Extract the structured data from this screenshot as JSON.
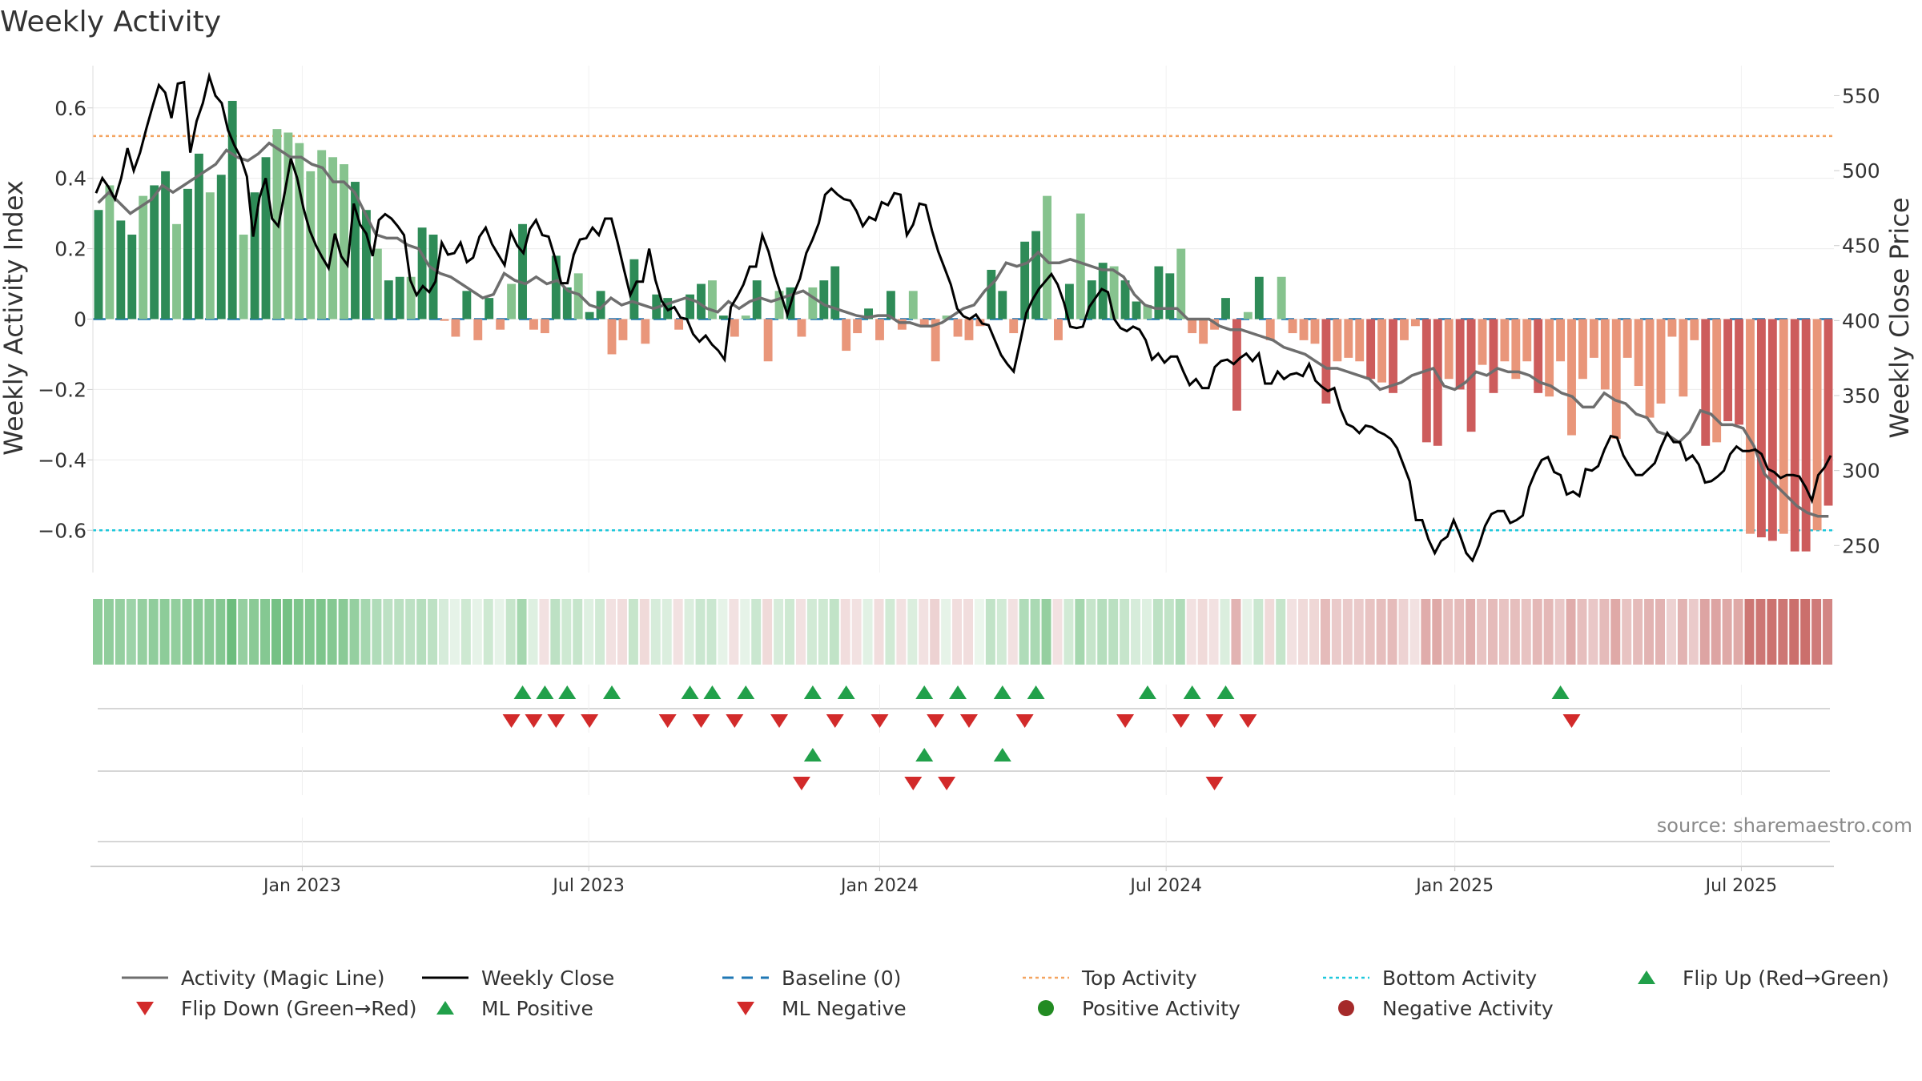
{
  "colors": {
    "dark_green": "#2e8b57",
    "light_green": "#86c38e",
    "dark_red": "#cd5c5c",
    "light_red": "#e9967a",
    "close_line": "#000000",
    "magic_line": "#6e6e6e",
    "baseline": "#1f77b4",
    "top_line": "#f4a460",
    "bottom_line": "#1ec8dc",
    "flip_up": "#21a04a",
    "flip_down": "#d22a2a",
    "pos_activity": "#228b22",
    "neg_activity": "#a52a2a"
  },
  "chart_data": {
    "type": "bar+line",
    "title": "Weekly Activity",
    "ylabel_left": "Weekly Activity Index",
    "ylabel_right": "Weekly Close Price",
    "ylim_left": [
      -0.72,
      0.72
    ],
    "ylim_right": [
      232,
      570
    ],
    "xlim_weeks": [
      -19,
      139
    ],
    "left_ticks": [
      {
        "v": 0.6,
        "label": "0.6"
      },
      {
        "v": 0.4,
        "label": "0.4"
      },
      {
        "v": 0.2,
        "label": "0.2"
      },
      {
        "v": 0,
        "label": "0"
      },
      {
        "v": -0.2,
        "label": "−0.2"
      },
      {
        "v": -0.4,
        "label": "−0.4"
      },
      {
        "v": -0.6,
        "label": "−0.6"
      }
    ],
    "right_ticks": [
      {
        "v": 550,
        "label": "550"
      },
      {
        "v": 500,
        "label": "500"
      },
      {
        "v": 450,
        "label": "450"
      },
      {
        "v": 400,
        "label": "400"
      },
      {
        "v": 350,
        "label": "350"
      },
      {
        "v": 300,
        "label": "300"
      },
      {
        "v": 250,
        "label": "250"
      }
    ],
    "x_ticks": [
      {
        "week": 0,
        "label": "Jan 2023"
      },
      {
        "week": 26,
        "label": "Jul 2023"
      },
      {
        "week": 52.4,
        "label": "Jan 2024"
      },
      {
        "week": 78.4,
        "label": "Jul 2024"
      },
      {
        "week": 104.6,
        "label": "Jan 2025"
      },
      {
        "week": 130.6,
        "label": "Jul 2025"
      }
    ],
    "top_activity": 0.52,
    "bottom_activity": -0.6,
    "activity_index": [
      0.31,
      0.38,
      0.28,
      0.24,
      0.35,
      0.38,
      0.42,
      0.27,
      0.37,
      0.47,
      0.36,
      0.41,
      0.62,
      0.24,
      0.36,
      0.46,
      0.54,
      0.53,
      0.5,
      0.42,
      0.48,
      0.46,
      0.44,
      0.39,
      0.31,
      0.2,
      0.11,
      0.12,
      0.12,
      0.26,
      0.24,
      -0.005,
      -0.05,
      0.08,
      -0.06,
      0.06,
      -0.03,
      0.1,
      0.27,
      -0.03,
      -0.04,
      0.18,
      0.09,
      0.13,
      0.02,
      0.08,
      -0.1,
      -0.06,
      0.17,
      -0.07,
      0.07,
      0.06,
      -0.03,
      0.07,
      0.1,
      0.11,
      0.01,
      -0.05,
      0.01,
      0.11,
      -0.12,
      0.08,
      0.09,
      -0.05,
      0.09,
      0.11,
      0.15,
      -0.09,
      -0.04,
      0.03,
      -0.06,
      0.08,
      -0.03,
      0.08,
      -0.02,
      -0.12,
      0.01,
      -0.05,
      -0.06,
      -0.02,
      0.14,
      0.08,
      -0.04,
      0.22,
      0.25,
      0.35,
      -0.06,
      0.1,
      0.3,
      0.11,
      0.16,
      0.15,
      0.11,
      0.05,
      0.04,
      0.15,
      0.13,
      0.2,
      -0.04,
      -0.07,
      -0.03,
      0.06,
      -0.26,
      0.02,
      0.12,
      -0.06,
      0.12,
      -0.04,
      -0.06,
      -0.07,
      -0.24,
      -0.12,
      -0.11,
      -0.12,
      -0.17,
      -0.18,
      -0.21,
      -0.06,
      -0.02,
      -0.35,
      -0.36,
      -0.17,
      -0.2,
      -0.32,
      -0.13,
      -0.21,
      -0.12,
      -0.17,
      -0.12,
      -0.21,
      -0.22,
      -0.12,
      -0.33,
      -0.17,
      -0.11,
      -0.2,
      -0.34,
      -0.11,
      -0.19,
      -0.28,
      -0.24,
      -0.05,
      -0.22,
      -0.06,
      -0.36,
      -0.35,
      -0.29,
      -0.3,
      -0.61,
      -0.62,
      -0.63,
      -0.61,
      -0.66,
      -0.66,
      -0.6,
      -0.53
    ],
    "magic_line": [
      0.33,
      0.36,
      0.33,
      0.3,
      0.32,
      0.34,
      0.38,
      0.36,
      0.38,
      0.4,
      0.42,
      0.44,
      0.48,
      0.46,
      0.45,
      0.47,
      0.5,
      0.48,
      0.46,
      0.46,
      0.44,
      0.43,
      0.39,
      0.39,
      0.36,
      0.3,
      0.24,
      0.23,
      0.23,
      0.21,
      0.2,
      0.15,
      0.13,
      0.12,
      0.1,
      0.08,
      0.06,
      0.07,
      0.13,
      0.11,
      0.1,
      0.12,
      0.1,
      0.11,
      0.08,
      0.07,
      0.04,
      0.03,
      0.06,
      0.04,
      0.05,
      0.04,
      0.03,
      0.04,
      0.05,
      0.06,
      0.05,
      0.03,
      0.02,
      0.05,
      0.03,
      0.05,
      0.06,
      0.05,
      0.06,
      0.07,
      0.08,
      0.06,
      0.04,
      0.03,
      0.02,
      0.01,
      0.005,
      0.01,
      0.01,
      -0.01,
      -0.01,
      -0.02,
      -0.02,
      -0.01,
      0.01,
      0.03,
      0.04,
      0.08,
      0.11,
      0.16,
      0.15,
      0.16,
      0.19,
      0.16,
      0.16,
      0.17,
      0.16,
      0.15,
      0.14,
      0.14,
      0.12,
      0.07,
      0.04,
      0.03,
      0.03,
      0.03,
      0.0,
      0.0,
      0.0,
      -0.02,
      -0.03,
      -0.03,
      -0.04,
      -0.05,
      -0.06,
      -0.08,
      -0.09,
      -0.1,
      -0.12,
      -0.14,
      -0.14,
      -0.15,
      -0.16,
      -0.17,
      -0.2,
      -0.19,
      -0.18,
      -0.16,
      -0.15,
      -0.14,
      -0.19,
      -0.2,
      -0.18,
      -0.15,
      -0.16,
      -0.14,
      -0.15,
      -0.15,
      -0.16,
      -0.18,
      -0.19,
      -0.21,
      -0.22,
      -0.25,
      -0.25,
      -0.21,
      -0.23,
      -0.24,
      -0.27,
      -0.28,
      -0.32,
      -0.33,
      -0.35,
      -0.32,
      -0.26,
      -0.27,
      -0.3,
      -0.3,
      -0.31,
      -0.36,
      -0.44,
      -0.47,
      -0.5,
      -0.53,
      -0.55,
      -0.56,
      -0.56
    ],
    "weekly_close": [
      485,
      495,
      489,
      481,
      495,
      515,
      500,
      512,
      528,
      543,
      557,
      552,
      535,
      558,
      559,
      512,
      533,
      545,
      563,
      550,
      545,
      527,
      517,
      509,
      496,
      456,
      482,
      495,
      468,
      463,
      485,
      508,
      495,
      475,
      460,
      450,
      442,
      435,
      458,
      443,
      437,
      478,
      464,
      458,
      443,
      467,
      471,
      468,
      463,
      457,
      427,
      417,
      423,
      419,
      426,
      452,
      444,
      445,
      452,
      439,
      442,
      456,
      462,
      451,
      444,
      437,
      459,
      450,
      445,
      461,
      467,
      457,
      456,
      442,
      425,
      425,
      444,
      454,
      455,
      462,
      457,
      468,
      468,
      452,
      434,
      417,
      426,
      426,
      448,
      427,
      413,
      407,
      409,
      402,
      401,
      391,
      386,
      390,
      384,
      380,
      374,
      409,
      416,
      424,
      436,
      436,
      457,
      446,
      430,
      417,
      404,
      418,
      428,
      445,
      454,
      465,
      484,
      488,
      484,
      481,
      480,
      473,
      463,
      469,
      467,
      479,
      477,
      485,
      484,
      457,
      464,
      478,
      477,
      460,
      446,
      435,
      424,
      408,
      403,
      401,
      404,
      398,
      397,
      387,
      377,
      371,
      366,
      385,
      405,
      414,
      421,
      426,
      431,
      424,
      412,
      396,
      395,
      396,
      409,
      415,
      421,
      419,
      401,
      395,
      393,
      396,
      394,
      387,
      374,
      378,
      372,
      376,
      376,
      366,
      357,
      361,
      355,
      355,
      369,
      373,
      374,
      371,
      375,
      378,
      373,
      378,
      358,
      358,
      366,
      361,
      364,
      365,
      363,
      371,
      360,
      356,
      353,
      355,
      341,
      331,
      329,
      325,
      330,
      329,
      326,
      324,
      321,
      315,
      304,
      293,
      267,
      267,
      254,
      245,
      253,
      256,
      267,
      257,
      245,
      240,
      250,
      263,
      271,
      273,
      273,
      265,
      267,
      270,
      289,
      299,
      307,
      309,
      299,
      297,
      284,
      286,
      283,
      301,
      300,
      303,
      314,
      323,
      322,
      310,
      303,
      297,
      297,
      301,
      305,
      316,
      325,
      319,
      319,
      307,
      310,
      304,
      292,
      293,
      296,
      300,
      311,
      316,
      313,
      313,
      314,
      311,
      301,
      299,
      295,
      297,
      297,
      296,
      289,
      280,
      297,
      302,
      310
    ],
    "trend_strip": [
      0.6,
      0.58,
      0.55,
      0.5,
      0.55,
      0.58,
      0.6,
      0.57,
      0.6,
      0.62,
      0.62,
      0.65,
      0.8,
      0.55,
      0.62,
      0.65,
      0.75,
      0.75,
      0.7,
      0.67,
      0.7,
      0.65,
      0.62,
      0.55,
      0.45,
      0.38,
      0.3,
      0.32,
      0.3,
      0.35,
      0.3,
      0.15,
      0.05,
      0.2,
      0.05,
      0.2,
      0.05,
      0.25,
      0.45,
      0.1,
      -0.05,
      0.3,
      0.2,
      0.25,
      0.1,
      0.18,
      -0.05,
      -0.08,
      0.25,
      -0.1,
      0.15,
      0.12,
      -0.05,
      0.12,
      0.22,
      0.22,
      0.05,
      -0.05,
      0.05,
      0.22,
      -0.1,
      0.15,
      0.2,
      -0.05,
      0.18,
      0.2,
      0.28,
      -0.08,
      -0.05,
      0.08,
      -0.08,
      0.18,
      -0.05,
      0.12,
      -0.05,
      -0.15,
      0.05,
      -0.08,
      -0.08,
      0.02,
      0.28,
      0.18,
      -0.05,
      0.38,
      0.42,
      0.55,
      -0.05,
      0.18,
      0.45,
      0.25,
      0.35,
      0.32,
      0.25,
      0.15,
      0.1,
      0.3,
      0.28,
      0.38,
      -0.05,
      -0.1,
      -0.05,
      0.12,
      -0.35,
      0.05,
      0.22,
      -0.1,
      0.25,
      -0.05,
      -0.1,
      -0.12,
      -0.3,
      -0.2,
      -0.2,
      -0.2,
      -0.25,
      -0.28,
      -0.3,
      -0.15,
      -0.05,
      -0.4,
      -0.42,
      -0.28,
      -0.3,
      -0.38,
      -0.25,
      -0.3,
      -0.25,
      -0.28,
      -0.25,
      -0.32,
      -0.32,
      -0.22,
      -0.4,
      -0.28,
      -0.22,
      -0.3,
      -0.42,
      -0.25,
      -0.3,
      -0.35,
      -0.35,
      -0.15,
      -0.35,
      -0.2,
      -0.45,
      -0.45,
      -0.42,
      -0.42,
      -0.75,
      -0.75,
      -0.78,
      -0.75,
      -0.8,
      -0.8,
      -0.72,
      -0.65
    ],
    "flip_rows": [
      {
        "name": "Flip Up / Flip Down",
        "up": [
          38,
          40,
          42,
          46,
          53,
          55,
          58,
          64,
          67,
          74,
          77,
          81,
          84,
          94,
          98,
          101,
          131
        ],
        "down": [
          37,
          39,
          41,
          44,
          51,
          54,
          57,
          61,
          66,
          70,
          75,
          78,
          83,
          92,
          97,
          100,
          103,
          132
        ]
      },
      {
        "name": "ML Positive / ML Negative",
        "up": [
          64,
          74,
          81
        ],
        "down": [
          63,
          73,
          76,
          100
        ]
      },
      {
        "name": "Positive / Negative Activity",
        "up": [],
        "down": []
      }
    ]
  },
  "source": "source: sharemaestro.com",
  "legend": [
    {
      "label": "Activity (Magic Line)",
      "kind": "line",
      "color_key": "magic_line"
    },
    {
      "label": "Weekly Close",
      "kind": "line",
      "color_key": "close_line"
    },
    {
      "label": "Baseline (0)",
      "kind": "dash",
      "color_key": "baseline"
    },
    {
      "label": "Top Activity",
      "kind": "dot",
      "color_key": "top_line"
    },
    {
      "label": "Bottom Activity",
      "kind": "dot",
      "color_key": "bottom_line"
    },
    {
      "label": "Flip Up (Red→Green)",
      "kind": "up",
      "color_key": "flip_up"
    },
    {
      "label": "Flip Down (Green→Red)",
      "kind": "down",
      "color_key": "flip_down"
    },
    {
      "label": "ML Positive",
      "kind": "up",
      "color_key": "flip_up"
    },
    {
      "label": "ML Negative",
      "kind": "down",
      "color_key": "flip_down"
    },
    {
      "label": "Positive Activity",
      "kind": "circle",
      "color_key": "pos_activity"
    },
    {
      "label": "Negative Activity",
      "kind": "circle",
      "color_key": "neg_activity"
    }
  ]
}
